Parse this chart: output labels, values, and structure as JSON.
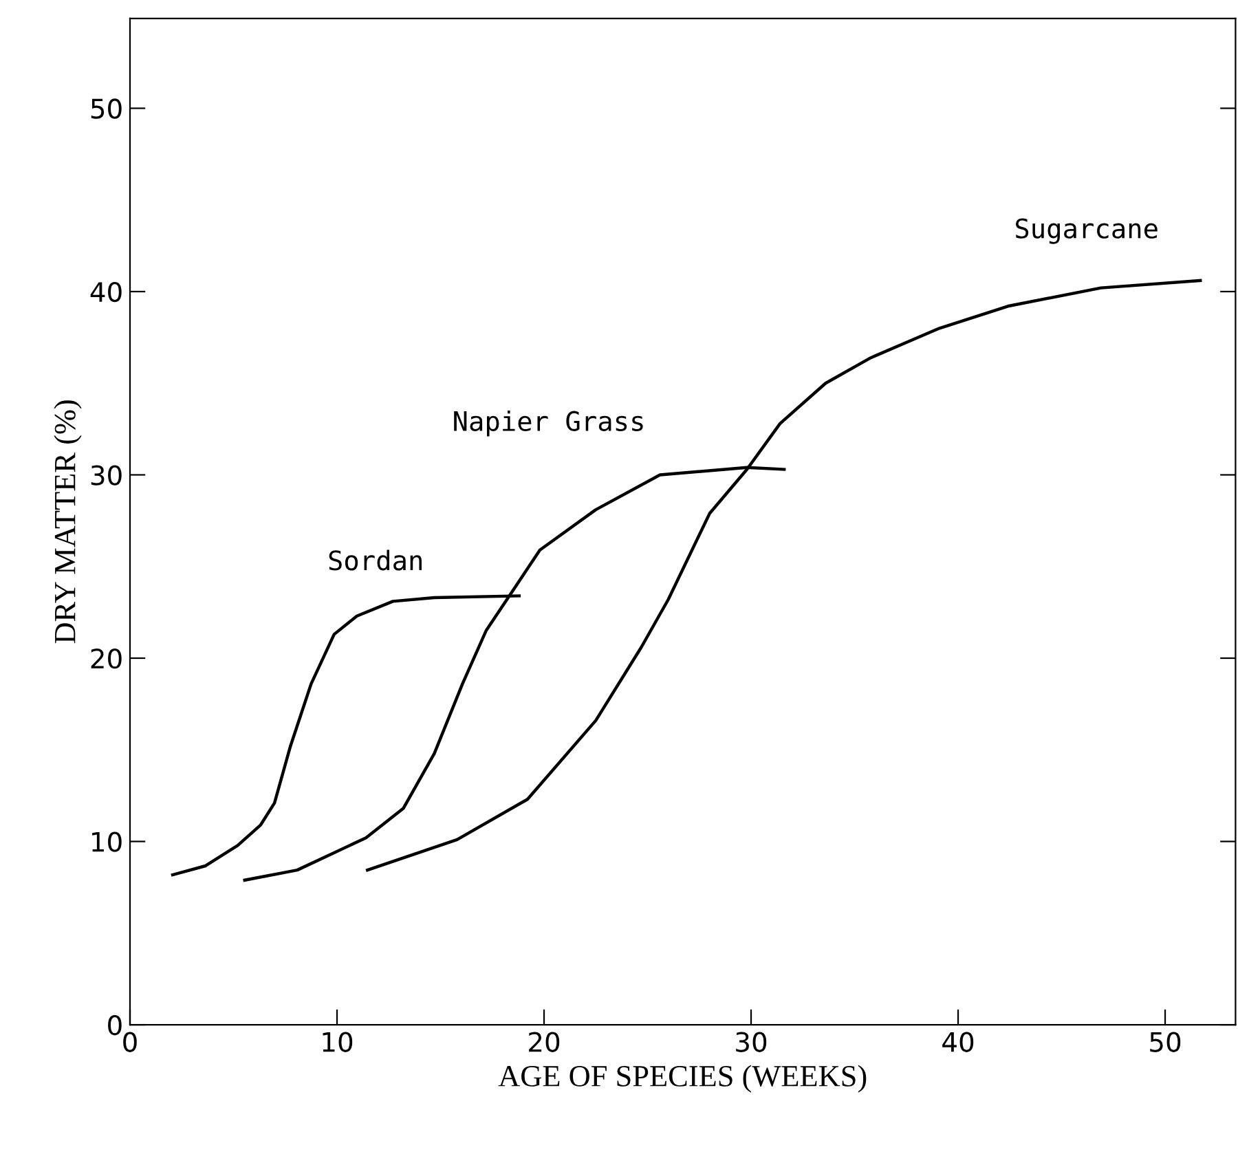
{
  "chart_data": {
    "type": "line",
    "xlabel": "AGE OF SPECIES (WEEKS)",
    "ylabel": "DRY MATTER (%)",
    "xlim": [
      0,
      53.4
    ],
    "ylim": [
      0,
      54.9
    ],
    "xticks": [
      0,
      10,
      20,
      30,
      40,
      50
    ],
    "yticks": [
      0,
      10,
      20,
      30,
      40,
      50
    ],
    "grid": false,
    "legend": false,
    "marker": "none",
    "line_style": "solid",
    "series": [
      {
        "name": "Sordan",
        "color": "#000000",
        "x": [
          2.06,
          3.65,
          5.2,
          6.31,
          6.98,
          7.75,
          8.75,
          9.86,
          10.96,
          12.7,
          14.7,
          18.8
        ],
        "values": [
          8.18,
          8.67,
          9.78,
          10.9,
          12.1,
          15.2,
          18.6,
          21.3,
          22.3,
          23.1,
          23.3,
          23.4
        ]
      },
      {
        "name": "Napier Grass",
        "color": "#000000",
        "x": [
          5.54,
          8.08,
          11.4,
          13.2,
          14.7,
          16.06,
          17.2,
          18.5,
          19.8,
          22.5,
          25.6,
          29.8,
          31.6
        ],
        "values": [
          7.89,
          8.44,
          10.2,
          11.8,
          14.8,
          18.6,
          21.5,
          23.7,
          25.9,
          28.1,
          30.0,
          30.4,
          30.3
        ]
      },
      {
        "name": "Sugarcane",
        "color": "#000000",
        "x": [
          11.47,
          15.8,
          19.2,
          22.5,
          24.7,
          26.0,
          28.0,
          29.8,
          31.4,
          33.6,
          35.8,
          39.1,
          42.4,
          46.9,
          51.7
        ],
        "values": [
          8.44,
          10.1,
          12.3,
          16.6,
          20.6,
          23.2,
          27.9,
          30.3,
          32.8,
          35.0,
          36.4,
          38.0,
          39.2,
          40.2,
          40.6
        ]
      }
    ]
  }
}
